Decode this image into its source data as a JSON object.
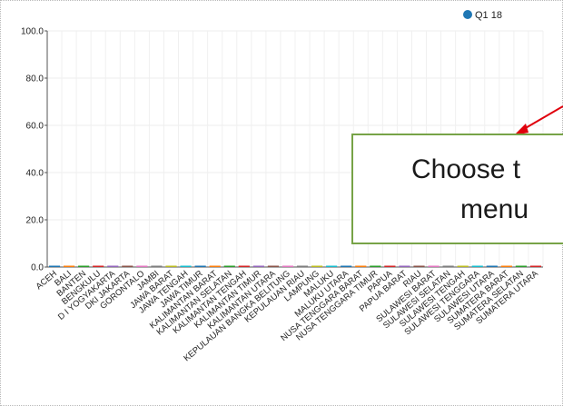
{
  "chart_data": {
    "type": "bar",
    "categories": [
      "ACEH",
      "BALI",
      "BANTEN",
      "BENGKULU",
      "D I YOGYAKARTA",
      "DKI JAKARTA",
      "GORONTALO",
      "JAMBI",
      "JAWA BARAT",
      "JAWA TENGAH",
      "JAWA TIMUR",
      "KALIMANTAN BARAT",
      "KALIMANTAN SELATAN",
      "KALIMANTAN TENGAH",
      "KALIMANTAN TIMUR",
      "KALIMANTAN UTARA",
      "KEPULAUAN BANGKA BELITUNG",
      "KEPULAUAN RIAU",
      "LAMPUNG",
      "MALUKU",
      "MALUKU UTARA",
      "NUSA TENGGARA BARAT",
      "NUSA TENGGARA TIMUR",
      "PAPUA",
      "PAPUA BARAT",
      "RIAU",
      "SULAWESI BARAT",
      "SULAWESI SELATAN",
      "SULAWESI TENGAH",
      "SULAWESI TENGGARA",
      "SULAWESI UTARA",
      "SUMATERA BARAT",
      "SUMATERA SELATAN",
      "SUMATERA UTARA"
    ],
    "series": [
      {
        "name": "Q1 18",
        "values": [
          0.3,
          0.3,
          0.3,
          0.3,
          0.3,
          0.3,
          0.3,
          0.3,
          0.3,
          0.3,
          0.3,
          0.3,
          0.3,
          0.3,
          0.3,
          0.3,
          0.3,
          0.3,
          0.3,
          0.3,
          0.3,
          0.3,
          0.3,
          0.3,
          0.3,
          0.3,
          0.3,
          0.3,
          0.3,
          0.3,
          0.3,
          0.3,
          0.3,
          0.3
        ]
      }
    ],
    "bar_colors": [
      "#1f77b4",
      "#ff7f0e",
      "#2ca02c",
      "#d62728",
      "#9467bd",
      "#8c564b",
      "#e377c2",
      "#7f7f7f",
      "#bcbd22",
      "#17becf"
    ],
    "legend_color": "#1f77b4",
    "yticks": [
      "0.0",
      "20.0",
      "40.0",
      "60.0",
      "80.0",
      "100.0"
    ],
    "ylim": [
      0,
      100
    ],
    "grid": true,
    "legend_position": "top-right"
  },
  "callout": {
    "line1": "Choose t",
    "line2": "menu",
    "border_color": "#77a347",
    "arrow_color": "#e0000c"
  }
}
